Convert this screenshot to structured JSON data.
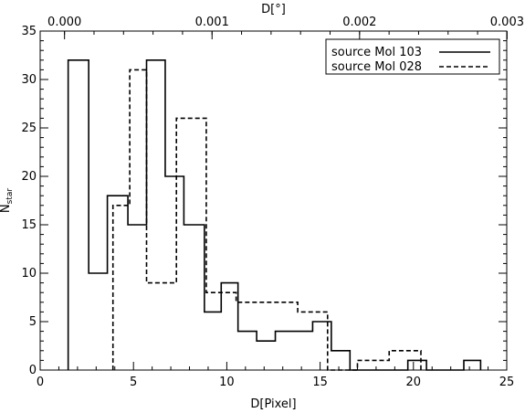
{
  "chart_data": {
    "type": "histogram",
    "xlabel": "D[Pixel]",
    "ylabel_main": "N",
    "ylabel_sub": "star",
    "top_xlabel": "D[°]",
    "xlim": [
      0,
      25
    ],
    "ylim": [
      0,
      35
    ],
    "x_ticks": [
      0,
      5,
      10,
      15,
      20,
      25
    ],
    "x_tick_labels": [
      "0",
      "5",
      "10",
      "15",
      "20",
      "25"
    ],
    "y_ticks": [
      0,
      5,
      10,
      15,
      20,
      25,
      30,
      35
    ],
    "y_tick_labels": [
      "0",
      "5",
      "10",
      "15",
      "20",
      "25",
      "30",
      "35"
    ],
    "top_ticks_deg": [
      0.0,
      0.001,
      0.002,
      0.003
    ],
    "top_tick_labels": [
      "0.000",
      "0.001",
      "0.002",
      "0.003"
    ],
    "top_axis_deg_at_x0": -0.000165,
    "top_axis_deg_per_pixel": 0.0001265,
    "legend_position": "top-right",
    "series": [
      {
        "name": "source Mol 103",
        "style": "solid",
        "color": "#000000",
        "bin_edges": [
          1.5,
          2.6,
          3.6,
          4.7,
          5.7,
          6.7,
          7.7,
          8.8,
          9.7,
          10.6,
          11.6,
          12.6,
          13.6,
          14.6,
          15.6,
          16.6,
          17.6,
          18.7,
          19.7,
          20.7,
          21.7,
          22.7,
          23.6
        ],
        "counts": [
          32,
          10,
          18,
          15,
          32,
          20,
          15,
          6,
          9,
          4,
          3,
          4,
          4,
          5,
          2,
          0,
          0,
          0,
          1,
          0,
          0,
          1
        ]
      },
      {
        "name": "source Mol 028",
        "style": "dashed",
        "color": "#000000",
        "bin_edges": [
          3.9,
          4.8,
          5.7,
          7.3,
          8.9,
          10.5,
          12.1,
          13.8,
          15.4,
          17.0,
          18.7,
          20.4
        ],
        "counts": [
          17,
          31,
          9,
          26,
          8,
          7,
          7,
          6,
          0,
          1,
          2
        ]
      }
    ]
  }
}
